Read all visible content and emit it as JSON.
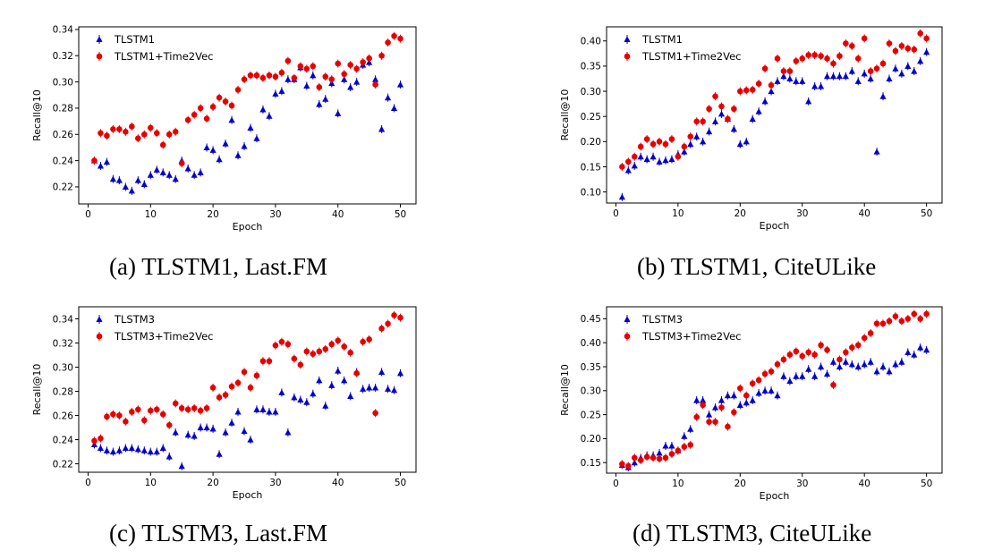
{
  "colors": {
    "series1": "#0000cc",
    "series2": "#e60000",
    "axis": "#000000"
  },
  "chart_data": [
    {
      "type": "scatter",
      "caption": "(a) TLSTM1, Last.FM",
      "xlabel": "Epoch",
      "ylabel": "Recall@10",
      "xlim": [
        -1.5,
        52.5
      ],
      "ylim": [
        0.207,
        0.342
      ],
      "xticks": [
        0,
        10,
        20,
        30,
        40,
        50
      ],
      "yticks": [
        0.22,
        0.24,
        0.26,
        0.28,
        0.3,
        0.32,
        0.34
      ],
      "ytick_labels": [
        "0.22",
        "0.24",
        "0.26",
        "0.28",
        "0.30",
        "0.32",
        "0.34"
      ],
      "legend": "top-left",
      "series": [
        {
          "name": "TLSTM1",
          "marker": "triangle",
          "x": [
            1,
            2,
            3,
            4,
            5,
            6,
            7,
            8,
            9,
            10,
            11,
            12,
            13,
            14,
            15,
            16,
            17,
            18,
            19,
            20,
            21,
            22,
            23,
            24,
            25,
            26,
            27,
            28,
            29,
            30,
            31,
            32,
            33,
            34,
            35,
            36,
            37,
            38,
            39,
            40,
            41,
            42,
            43,
            44,
            45,
            46,
            47,
            48,
            49,
            50
          ],
          "y": [
            0.24,
            0.236,
            0.239,
            0.226,
            0.225,
            0.22,
            0.217,
            0.225,
            0.222,
            0.229,
            0.233,
            0.231,
            0.229,
            0.226,
            0.24,
            0.234,
            0.229,
            0.231,
            0.25,
            0.248,
            0.241,
            0.253,
            0.271,
            0.244,
            0.251,
            0.265,
            0.257,
            0.279,
            0.274,
            0.291,
            0.293,
            0.302,
            0.302,
            0.311,
            0.297,
            0.305,
            0.283,
            0.287,
            0.299,
            0.276,
            0.302,
            0.296,
            0.3,
            0.313,
            0.315,
            0.302,
            0.264,
            0.288,
            0.28,
            0.298
          ]
        },
        {
          "name": "TLSTM1+Time2Vec",
          "marker": "circle",
          "x": [
            1,
            2,
            3,
            4,
            5,
            6,
            7,
            8,
            9,
            10,
            11,
            12,
            13,
            14,
            15,
            16,
            17,
            18,
            19,
            20,
            21,
            22,
            23,
            24,
            25,
            26,
            27,
            28,
            29,
            30,
            31,
            32,
            33,
            34,
            35,
            36,
            37,
            38,
            39,
            40,
            41,
            42,
            43,
            44,
            45,
            46,
            47,
            48,
            49,
            50
          ],
          "y": [
            0.24,
            0.261,
            0.259,
            0.264,
            0.264,
            0.262,
            0.266,
            0.257,
            0.26,
            0.265,
            0.261,
            0.252,
            0.26,
            0.262,
            0.238,
            0.271,
            0.275,
            0.28,
            0.272,
            0.281,
            0.288,
            0.285,
            0.282,
            0.294,
            0.302,
            0.305,
            0.305,
            0.303,
            0.305,
            0.304,
            0.307,
            0.316,
            0.303,
            0.312,
            0.31,
            0.312,
            0.296,
            0.304,
            0.302,
            0.314,
            0.306,
            0.313,
            0.31,
            0.315,
            0.318,
            0.298,
            0.32,
            0.33,
            0.335,
            0.333
          ]
        }
      ]
    },
    {
      "type": "scatter",
      "caption": "(b) TLSTM1, CiteULike",
      "xlabel": "Epoch",
      "ylabel": "Recall@10",
      "xlim": [
        -1.5,
        52.5
      ],
      "ylim": [
        0.078,
        0.428
      ],
      "xticks": [
        0,
        10,
        20,
        30,
        40,
        50
      ],
      "yticks": [
        0.1,
        0.15,
        0.2,
        0.25,
        0.3,
        0.35,
        0.4
      ],
      "ytick_labels": [
        "0.10",
        "0.15",
        "0.20",
        "0.25",
        "0.30",
        "0.35",
        "0.40"
      ],
      "legend": "top-left",
      "series": [
        {
          "name": "TLSTM1",
          "marker": "triangle",
          "x": [
            1,
            2,
            3,
            4,
            5,
            6,
            7,
            8,
            9,
            10,
            11,
            12,
            13,
            14,
            15,
            16,
            17,
            18,
            19,
            20,
            21,
            22,
            23,
            24,
            25,
            26,
            27,
            28,
            29,
            30,
            31,
            32,
            33,
            34,
            35,
            36,
            37,
            38,
            39,
            40,
            41,
            42,
            43,
            44,
            45,
            46,
            47,
            48,
            49,
            50
          ],
          "y": [
            0.09,
            0.143,
            0.152,
            0.17,
            0.165,
            0.17,
            0.16,
            0.163,
            0.165,
            0.175,
            0.18,
            0.195,
            0.21,
            0.2,
            0.22,
            0.24,
            0.255,
            0.245,
            0.225,
            0.195,
            0.2,
            0.245,
            0.26,
            0.28,
            0.3,
            0.32,
            0.33,
            0.325,
            0.32,
            0.32,
            0.28,
            0.31,
            0.31,
            0.33,
            0.33,
            0.33,
            0.33,
            0.34,
            0.32,
            0.335,
            0.325,
            0.18,
            0.29,
            0.325,
            0.345,
            0.335,
            0.35,
            0.34,
            0.36,
            0.378
          ]
        },
        {
          "name": "TLSTM1+Time2Vec",
          "marker": "circle",
          "x": [
            1,
            2,
            3,
            4,
            5,
            6,
            7,
            8,
            9,
            10,
            11,
            12,
            13,
            14,
            15,
            16,
            17,
            18,
            19,
            20,
            21,
            22,
            23,
            24,
            25,
            26,
            27,
            28,
            29,
            30,
            31,
            32,
            33,
            34,
            35,
            36,
            37,
            38,
            39,
            40,
            41,
            42,
            43,
            44,
            45,
            46,
            47,
            48,
            49,
            50
          ],
          "y": [
            0.15,
            0.16,
            0.17,
            0.19,
            0.205,
            0.195,
            0.2,
            0.195,
            0.205,
            0.17,
            0.19,
            0.21,
            0.24,
            0.24,
            0.265,
            0.29,
            0.27,
            0.245,
            0.265,
            0.3,
            0.302,
            0.303,
            0.315,
            0.345,
            0.312,
            0.365,
            0.34,
            0.34,
            0.36,
            0.365,
            0.372,
            0.372,
            0.37,
            0.365,
            0.355,
            0.37,
            0.395,
            0.39,
            0.365,
            0.405,
            0.34,
            0.345,
            0.355,
            0.395,
            0.38,
            0.39,
            0.385,
            0.383,
            0.415,
            0.405
          ]
        }
      ]
    },
    {
      "type": "scatter",
      "caption": "(c) TLSTM3, Last.FM",
      "xlabel": "Epoch",
      "ylabel": "Recall@10",
      "xlim": [
        -1.5,
        52.5
      ],
      "ylim": [
        0.213,
        0.35
      ],
      "xticks": [
        0,
        10,
        20,
        30,
        40,
        50
      ],
      "yticks": [
        0.22,
        0.24,
        0.26,
        0.28,
        0.3,
        0.32,
        0.34
      ],
      "ytick_labels": [
        "0.22",
        "0.24",
        "0.26",
        "0.28",
        "0.30",
        "0.32",
        "0.34"
      ],
      "legend": "top-left",
      "series": [
        {
          "name": "TLSTM3",
          "marker": "triangle",
          "x": [
            1,
            2,
            3,
            4,
            5,
            6,
            7,
            8,
            9,
            10,
            11,
            12,
            13,
            14,
            15,
            16,
            17,
            18,
            19,
            20,
            21,
            22,
            23,
            24,
            25,
            26,
            27,
            28,
            29,
            30,
            31,
            32,
            33,
            34,
            35,
            36,
            37,
            38,
            39,
            40,
            41,
            42,
            43,
            44,
            45,
            46,
            47,
            48,
            49,
            50
          ],
          "y": [
            0.236,
            0.233,
            0.231,
            0.23,
            0.231,
            0.233,
            0.233,
            0.232,
            0.231,
            0.23,
            0.23,
            0.233,
            0.226,
            0.246,
            0.218,
            0.244,
            0.243,
            0.25,
            0.25,
            0.249,
            0.228,
            0.246,
            0.254,
            0.263,
            0.247,
            0.24,
            0.265,
            0.265,
            0.263,
            0.263,
            0.279,
            0.246,
            0.275,
            0.273,
            0.271,
            0.278,
            0.289,
            0.268,
            0.285,
            0.297,
            0.289,
            0.276,
            0.296,
            0.282,
            0.283,
            0.283,
            0.296,
            0.282,
            0.281,
            0.295
          ]
        },
        {
          "name": "TLSTM3+Time2Vec",
          "marker": "circle",
          "x": [
            1,
            2,
            3,
            4,
            5,
            6,
            7,
            8,
            9,
            10,
            11,
            12,
            13,
            14,
            15,
            16,
            17,
            18,
            19,
            20,
            21,
            22,
            23,
            24,
            25,
            26,
            27,
            28,
            29,
            30,
            31,
            32,
            33,
            34,
            35,
            36,
            37,
            38,
            39,
            40,
            41,
            42,
            43,
            44,
            45,
            46,
            47,
            48,
            49,
            50
          ],
          "y": [
            0.239,
            0.241,
            0.259,
            0.261,
            0.26,
            0.255,
            0.263,
            0.265,
            0.256,
            0.264,
            0.265,
            0.261,
            0.252,
            0.27,
            0.266,
            0.265,
            0.266,
            0.264,
            0.266,
            0.283,
            0.275,
            0.277,
            0.284,
            0.287,
            0.296,
            0.283,
            0.293,
            0.305,
            0.305,
            0.318,
            0.321,
            0.319,
            0.307,
            0.302,
            0.313,
            0.311,
            0.313,
            0.315,
            0.319,
            0.322,
            0.317,
            0.312,
            0.295,
            0.321,
            0.323,
            0.262,
            0.332,
            0.336,
            0.343,
            0.341
          ]
        }
      ]
    },
    {
      "type": "scatter",
      "caption": "(d) TLSTM3, CiteULike",
      "xlabel": "Epoch",
      "ylabel": "Recall@10",
      "xlim": [
        -1.5,
        52.5
      ],
      "ylim": [
        0.128,
        0.475
      ],
      "xticks": [
        0,
        10,
        20,
        30,
        40,
        50
      ],
      "yticks": [
        0.15,
        0.2,
        0.25,
        0.3,
        0.35,
        0.4,
        0.45
      ],
      "ytick_labels": [
        "0.15",
        "0.20",
        "0.25",
        "0.30",
        "0.35",
        "0.40",
        "0.45"
      ],
      "legend": "top-left",
      "series": [
        {
          "name": "TLSTM3",
          "marker": "triangle",
          "x": [
            1,
            2,
            3,
            4,
            5,
            6,
            7,
            8,
            9,
            10,
            11,
            12,
            13,
            14,
            15,
            16,
            17,
            18,
            19,
            20,
            21,
            22,
            23,
            24,
            25,
            26,
            27,
            28,
            29,
            30,
            31,
            32,
            33,
            34,
            35,
            36,
            37,
            38,
            39,
            40,
            41,
            42,
            43,
            44,
            45,
            46,
            47,
            48,
            49,
            50
          ],
          "y": [
            0.145,
            0.14,
            0.15,
            0.16,
            0.165,
            0.165,
            0.17,
            0.185,
            0.185,
            0.175,
            0.205,
            0.22,
            0.28,
            0.28,
            0.25,
            0.265,
            0.28,
            0.29,
            0.29,
            0.27,
            0.275,
            0.28,
            0.295,
            0.3,
            0.3,
            0.29,
            0.33,
            0.32,
            0.33,
            0.33,
            0.345,
            0.33,
            0.35,
            0.335,
            0.36,
            0.35,
            0.36,
            0.355,
            0.35,
            0.355,
            0.36,
            0.34,
            0.35,
            0.34,
            0.355,
            0.36,
            0.38,
            0.375,
            0.39,
            0.385
          ]
        },
        {
          "name": "TLSTM3+Time2Vec",
          "marker": "circle",
          "x": [
            1,
            2,
            3,
            4,
            5,
            6,
            7,
            8,
            9,
            10,
            11,
            12,
            13,
            14,
            15,
            16,
            17,
            18,
            19,
            20,
            21,
            22,
            23,
            24,
            25,
            26,
            27,
            28,
            29,
            30,
            31,
            32,
            33,
            34,
            35,
            36,
            37,
            38,
            39,
            40,
            41,
            42,
            43,
            44,
            45,
            46,
            47,
            48,
            49,
            50
          ],
          "y": [
            0.147,
            0.143,
            0.16,
            0.155,
            0.162,
            0.16,
            0.158,
            0.16,
            0.168,
            0.175,
            0.183,
            0.187,
            0.245,
            0.27,
            0.235,
            0.235,
            0.265,
            0.225,
            0.255,
            0.305,
            0.29,
            0.315,
            0.322,
            0.335,
            0.34,
            0.355,
            0.365,
            0.375,
            0.382,
            0.372,
            0.38,
            0.375,
            0.395,
            0.385,
            0.312,
            0.365,
            0.38,
            0.39,
            0.395,
            0.41,
            0.42,
            0.44,
            0.44,
            0.445,
            0.455,
            0.445,
            0.45,
            0.46,
            0.45,
            0.46
          ]
        }
      ]
    }
  ]
}
